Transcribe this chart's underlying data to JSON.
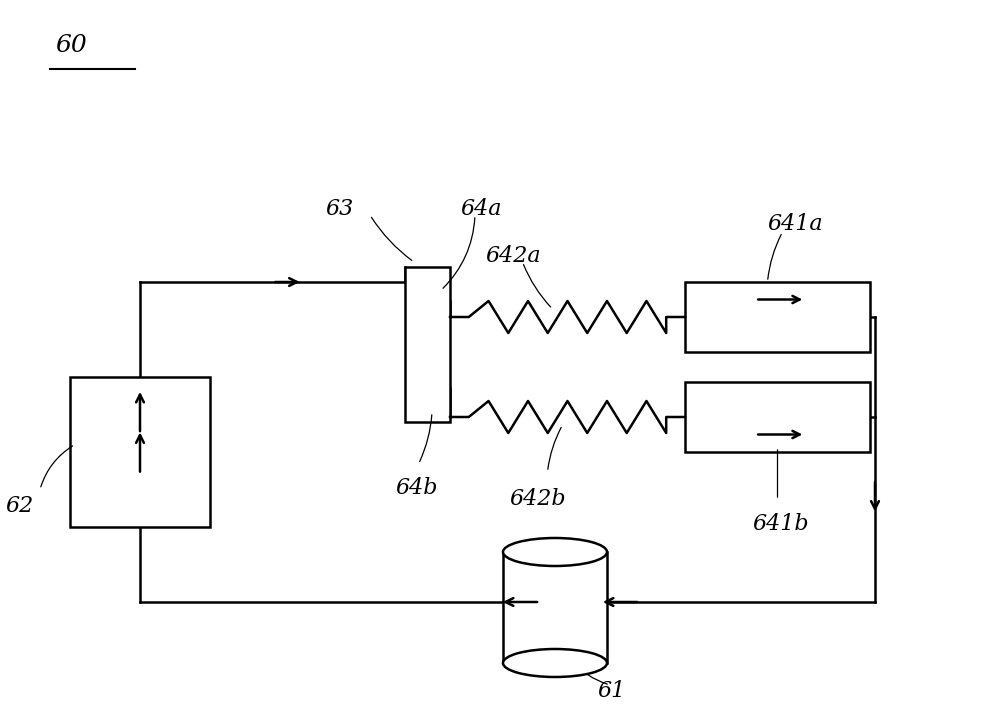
{
  "bg_color": "#ffffff",
  "line_color": "#000000",
  "line_width": 1.8,
  "label_60": "60",
  "label_61": "61",
  "label_62": "62",
  "label_63": "63",
  "label_64a": "64a",
  "label_64b": "64b",
  "label_641a": "641a",
  "label_641b": "641b",
  "label_642a": "642a",
  "label_642b": "642b",
  "label_fontsize": 16,
  "label60_fontsize": 18
}
